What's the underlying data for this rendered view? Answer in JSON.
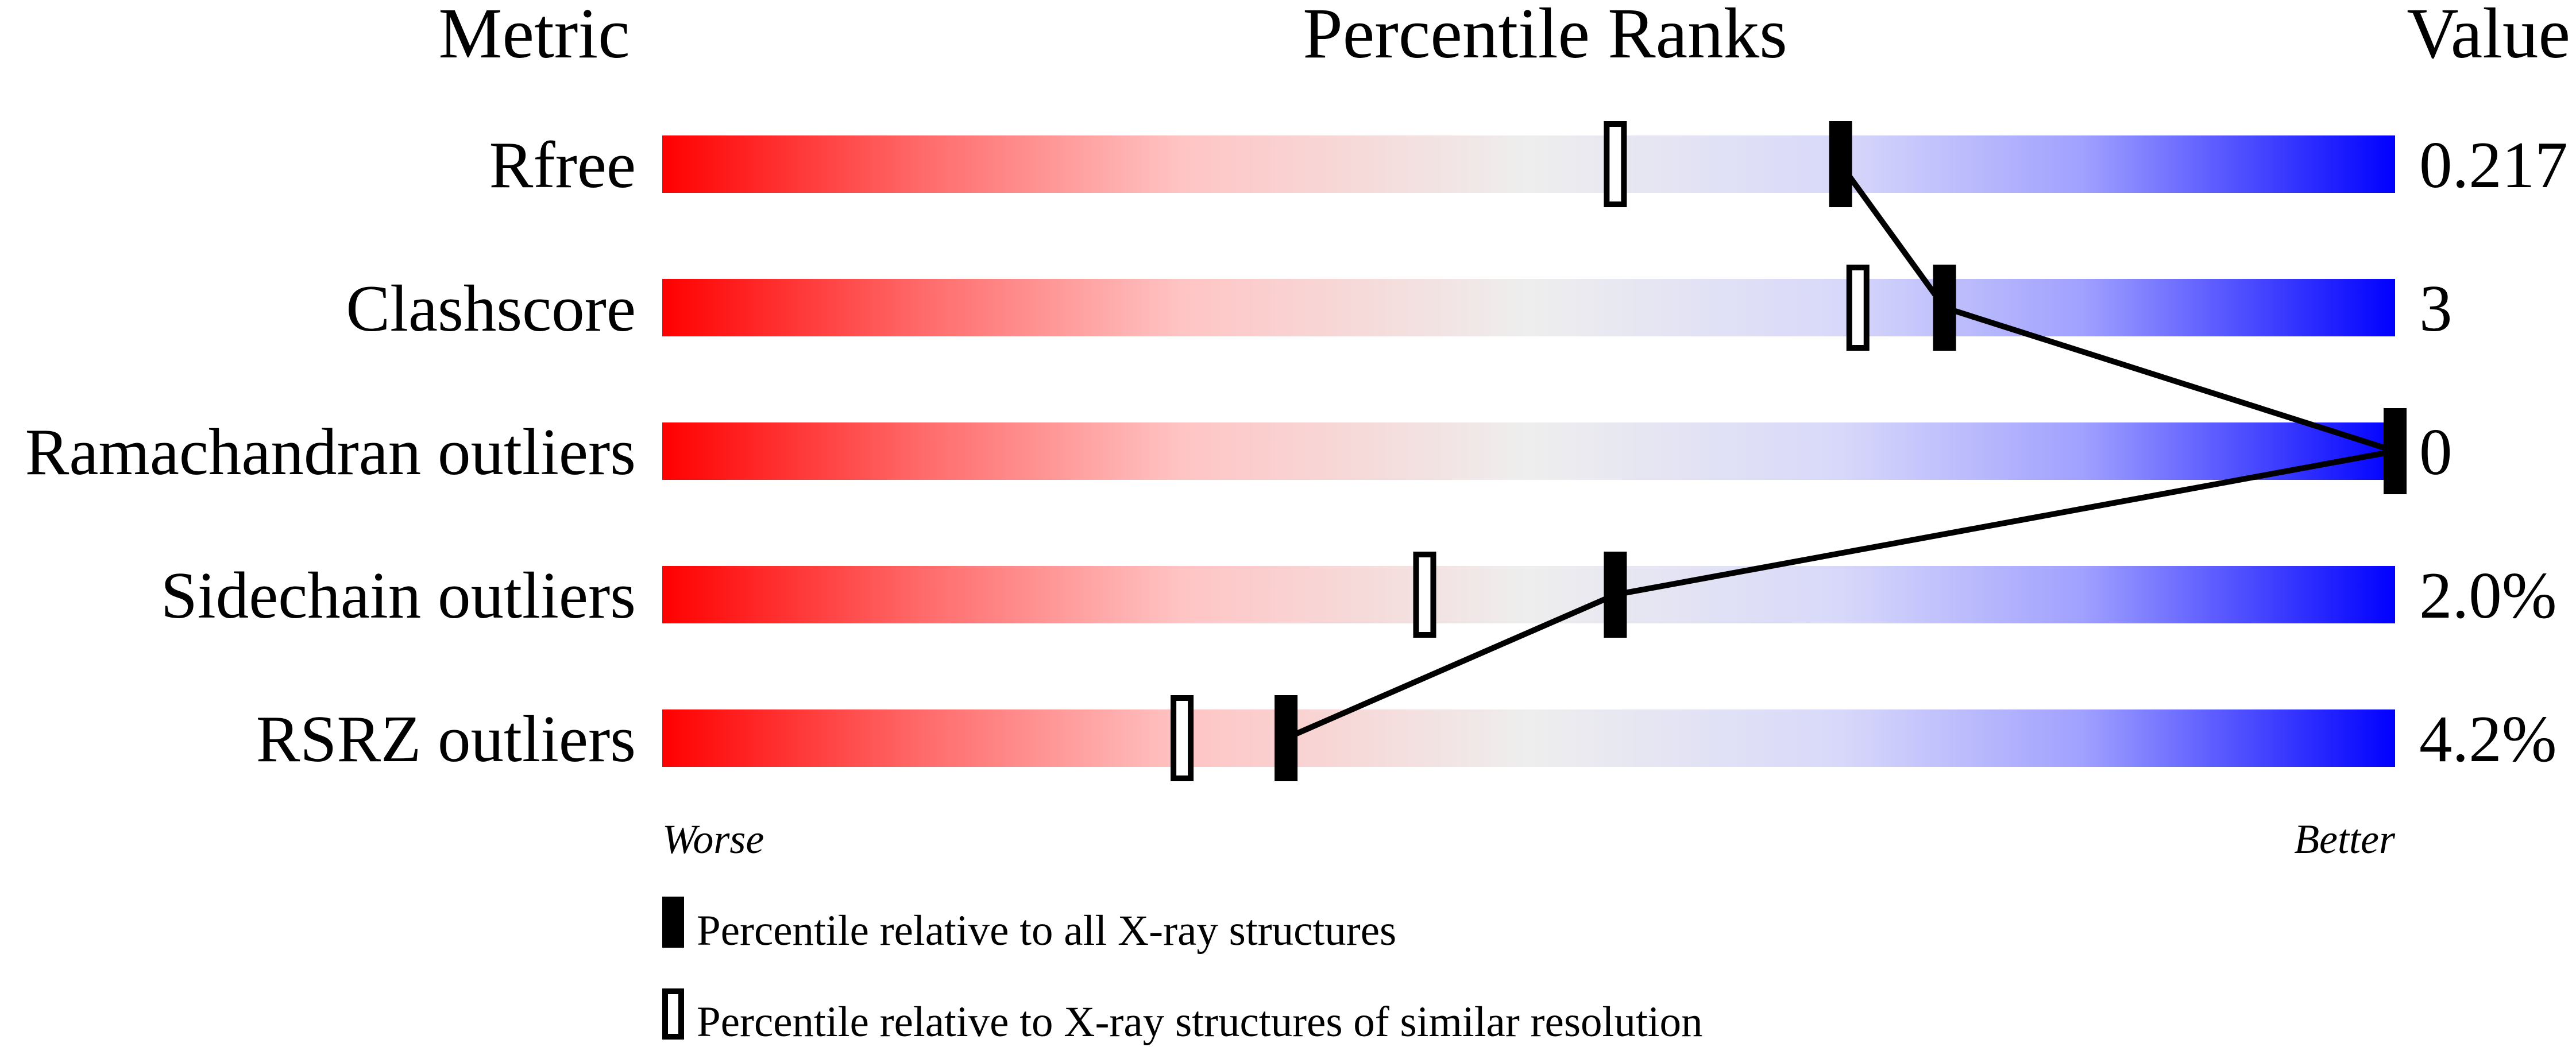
{
  "chart_data": {
    "type": "percentile-rank",
    "headers": {
      "metric": "Metric",
      "ranks": "Percentile Ranks",
      "value": "Value"
    },
    "xlim": [
      0,
      100
    ],
    "axis_labels": {
      "left": "Worse",
      "right": "Better"
    },
    "metrics": [
      {
        "name": "Rfree",
        "value": "0.217",
        "percentile_all": 68,
        "percentile_similar": 55
      },
      {
        "name": "Clashscore",
        "value": "3",
        "percentile_all": 74,
        "percentile_similar": 69
      },
      {
        "name": "Ramachandran outliers",
        "value": "0",
        "percentile_all": 100,
        "percentile_similar": 100
      },
      {
        "name": "Sidechain outliers",
        "value": "2.0%",
        "percentile_all": 55,
        "percentile_similar": 44
      },
      {
        "name": "RSRZ outliers",
        "value": "4.2%",
        "percentile_all": 36,
        "percentile_similar": 30
      }
    ],
    "legend": [
      {
        "marker": "filled",
        "label": "Percentile relative to all X-ray structures"
      },
      {
        "marker": "open",
        "label": "Percentile relative to X-ray structures of similar resolution"
      }
    ],
    "colors": {
      "worse": "#ff0000",
      "middle": "#eeeeee",
      "better": "#0000ff",
      "marker": "#000000"
    }
  }
}
